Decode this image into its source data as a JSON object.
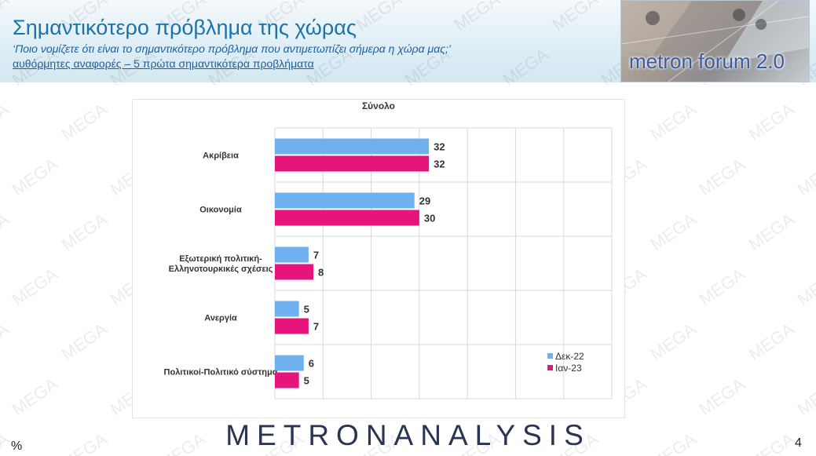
{
  "header": {
    "title": "Σημαντικότερο πρόβλημα της χώρας",
    "question": "‘Ποιο νομίζετε ότι  είναι το σημαντικότερο πρόβλημα που αντιμετωπίζει σήμερα η χώρα μας;’",
    "note": "αυθόρμητες αναφορές – 5 πρώτα σημαντικότερα προβλήματα"
  },
  "logo": {
    "text": "metron forum 2.0"
  },
  "watermark": {
    "text": "MEGA"
  },
  "colors": {
    "series1": "#6fb1ef",
    "series2": "#e5157c",
    "title": "#1d73a8"
  },
  "chart_data": {
    "type": "bar",
    "orientation": "horizontal",
    "title": "Σύνολο",
    "categories": [
      [
        "Ακρίβεια"
      ],
      [
        "Οικονομία"
      ],
      [
        "Εξωτερική πολιτική-",
        "Ελληνοτουρκικές σχέσεις"
      ],
      [
        "Ανεργία"
      ],
      [
        "Πολιτικοί-Πολιτικό σύστημα"
      ]
    ],
    "series": [
      {
        "name": "Δεκ-22",
        "values": [
          32,
          29,
          7,
          5,
          6
        ]
      },
      {
        "name": "Ιαν-23",
        "values": [
          32,
          30,
          8,
          7,
          5
        ]
      }
    ],
    "xlim": [
      0,
      70
    ],
    "grid": true,
    "legend": "right"
  },
  "footer": {
    "brand": "METRONANALYSIS",
    "unit": "%",
    "page": "4"
  }
}
